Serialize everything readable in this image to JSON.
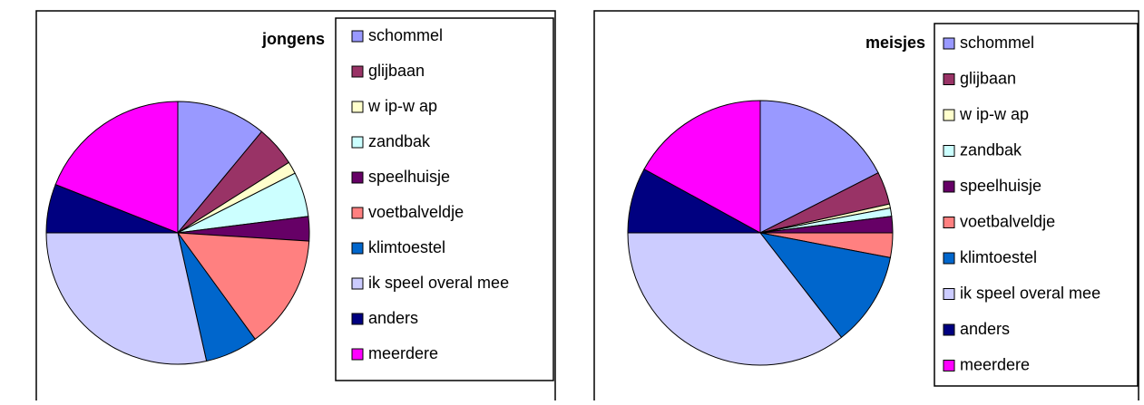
{
  "chart_data": [
    {
      "type": "pie",
      "title": "jongens",
      "categories": [
        "schommel",
        "glijbaan",
        "w ip-w ap",
        "zandbak",
        "speelhuisje",
        "voetbalveldje",
        "klimtoestel",
        "ik speel overal mee",
        "anders",
        "meerdere"
      ],
      "values": [
        11,
        5,
        1.5,
        5.5,
        3,
        14,
        6.5,
        28.5,
        6,
        19
      ],
      "colors": [
        "#9999ff",
        "#993366",
        "#ffffcc",
        "#ccffff",
        "#660066",
        "#ff8080",
        "#0066cc",
        "#ccccff",
        "#000080",
        "#ff00ff"
      ]
    },
    {
      "type": "pie",
      "title": "meisjes",
      "categories": [
        "schommel",
        "glijbaan",
        "w ip-w ap",
        "zandbak",
        "speelhuisje",
        "voetbalveldje",
        "klimtoestel",
        "ik speel overal mee",
        "anders",
        "meerdere"
      ],
      "values": [
        17.5,
        4,
        0.5,
        1,
        2,
        3,
        11.5,
        35.5,
        8,
        17
      ],
      "colors": [
        "#9999ff",
        "#993366",
        "#ffffcc",
        "#ccffff",
        "#660066",
        "#ff8080",
        "#0066cc",
        "#ccccff",
        "#000080",
        "#ff00ff"
      ]
    }
  ]
}
